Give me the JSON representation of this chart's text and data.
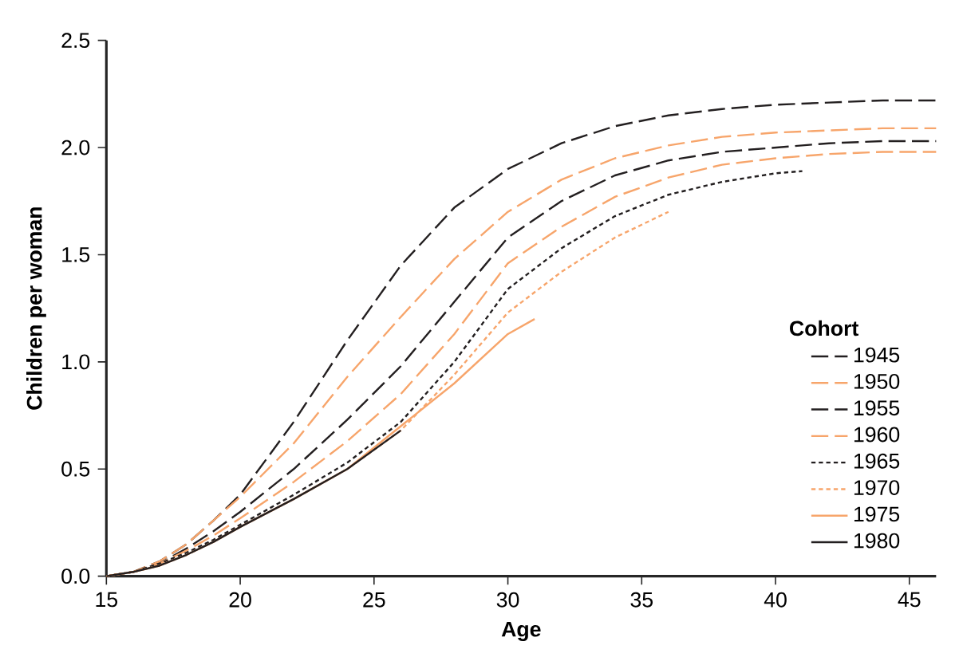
{
  "chart_data": {
    "type": "line",
    "xlabel": "Age",
    "ylabel": "Children per woman",
    "legend_title": "Cohort",
    "legend": "right",
    "xlim": [
      15,
      46
    ],
    "ylim": [
      0,
      2.5
    ],
    "xticks": [
      15,
      20,
      25,
      30,
      35,
      40,
      45
    ],
    "yticks": [
      {
        "value": 0,
        "label": "0.0"
      },
      {
        "value": 0.5,
        "label": "0.5"
      },
      {
        "value": 1,
        "label": "1.0"
      },
      {
        "value": 1.5,
        "label": "1.5"
      },
      {
        "value": 2,
        "label": "2.0"
      },
      {
        "value": 2.5,
        "label": "2.5"
      }
    ],
    "grid": false,
    "marker": "none",
    "x": [
      15,
      16,
      17,
      18,
      19,
      20,
      22,
      24,
      26,
      28,
      30,
      32,
      34,
      36,
      38,
      40,
      42,
      44,
      46
    ],
    "series": [
      {
        "name": "1945",
        "color": "#231f20",
        "line_style": "dashed",
        "values": [
          0,
          0.02,
          0.07,
          0.15,
          0.26,
          0.38,
          0.72,
          1.1,
          1.45,
          1.72,
          1.9,
          2.02,
          2.1,
          2.15,
          2.18,
          2.2,
          2.21,
          2.22,
          2.22
        ]
      },
      {
        "name": "1950",
        "color": "#f7a56b",
        "line_style": "dashed",
        "values": [
          0,
          0.02,
          0.07,
          0.15,
          0.26,
          0.37,
          0.62,
          0.93,
          1.21,
          1.48,
          1.7,
          1.85,
          1.95,
          2.01,
          2.05,
          2.07,
          2.08,
          2.09,
          2.09
        ]
      },
      {
        "name": "1955",
        "color": "#231f20",
        "line_style": "dashed",
        "values": [
          0,
          0.02,
          0.06,
          0.13,
          0.21,
          0.3,
          0.5,
          0.73,
          0.98,
          1.28,
          1.58,
          1.75,
          1.87,
          1.94,
          1.98,
          2.0,
          2.02,
          2.03,
          2.03
        ]
      },
      {
        "name": "1960",
        "color": "#f7a56b",
        "line_style": "dashed",
        "values": [
          0,
          0.02,
          0.06,
          0.12,
          0.19,
          0.27,
          0.44,
          0.63,
          0.85,
          1.13,
          1.46,
          1.63,
          1.77,
          1.86,
          1.92,
          1.95,
          1.97,
          1.98,
          1.98
        ]
      },
      {
        "name": "1965",
        "color": "#231f20",
        "line_style": "dotted",
        "x": [
          15,
          16,
          17,
          18,
          19,
          20,
          22,
          24,
          26,
          28,
          30,
          32,
          34,
          36,
          38,
          40,
          41
        ],
        "values": [
          0,
          0.02,
          0.06,
          0.11,
          0.17,
          0.24,
          0.38,
          0.53,
          0.72,
          1.0,
          1.34,
          1.53,
          1.68,
          1.78,
          1.84,
          1.88,
          1.89
        ]
      },
      {
        "name": "1970",
        "color": "#f7a56b",
        "line_style": "dotted",
        "x": [
          15,
          16,
          17,
          18,
          19,
          20,
          22,
          24,
          26,
          28,
          30,
          32,
          34,
          36
        ],
        "values": [
          0,
          0.02,
          0.05,
          0.1,
          0.16,
          0.23,
          0.36,
          0.5,
          0.68,
          0.94,
          1.23,
          1.42,
          1.58,
          1.7
        ]
      },
      {
        "name": "1975",
        "color": "#f7a56b",
        "line_style": "solid",
        "x": [
          15,
          16,
          17,
          18,
          19,
          20,
          22,
          24,
          26,
          28,
          30,
          31
        ],
        "values": [
          0,
          0.02,
          0.05,
          0.1,
          0.16,
          0.23,
          0.36,
          0.5,
          0.7,
          0.9,
          1.13,
          1.2
        ]
      },
      {
        "name": "1980",
        "color": "#231f20",
        "line_style": "solid",
        "x": [
          15,
          16,
          17,
          18,
          19,
          20,
          22,
          24,
          26
        ],
        "values": [
          0,
          0.02,
          0.05,
          0.1,
          0.16,
          0.23,
          0.36,
          0.5,
          0.68
        ]
      }
    ]
  }
}
